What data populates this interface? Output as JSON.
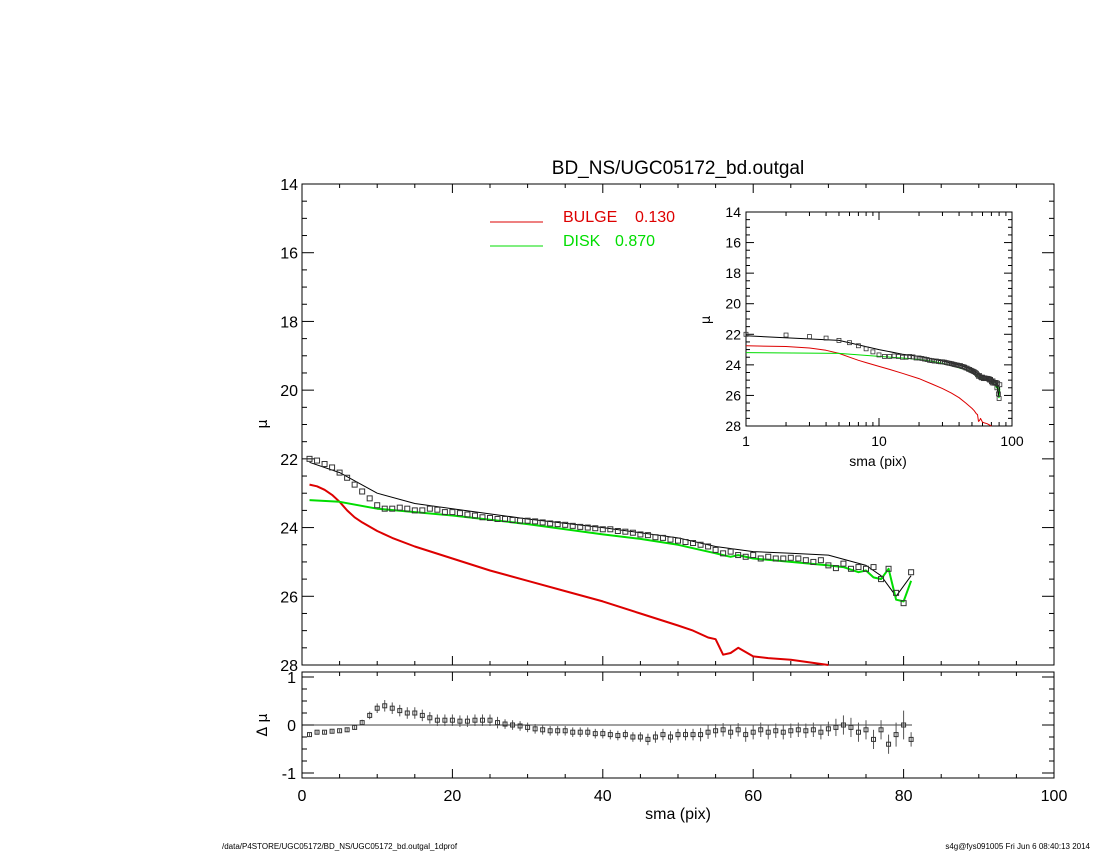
{
  "chart_data": {
    "type": "line",
    "title": "BD_NS/UGC05172_bd.outgal",
    "main_panel": {
      "ylabel": "μ",
      "xlim": [
        0,
        100
      ],
      "ylim": [
        28,
        14
      ],
      "yticks": [
        "14",
        "16",
        "18",
        "20",
        "22",
        "24",
        "26",
        "28"
      ],
      "legend": [
        {
          "label": "BULGE",
          "value": "0.130",
          "color": "#dd0000"
        },
        {
          "label": "DISK",
          "value": "0.870",
          "color": "#00dd00"
        }
      ],
      "data_points": {
        "name": "",
        "marker": "square",
        "x": [
          1,
          2,
          3,
          4,
          5,
          6,
          7,
          8,
          9,
          10,
          11,
          12,
          13,
          14,
          15,
          16,
          17,
          18,
          19,
          20,
          21,
          22,
          23,
          24,
          25,
          26,
          27,
          28,
          29,
          30,
          31,
          32,
          33,
          34,
          35,
          36,
          37,
          38,
          39,
          40,
          41,
          42,
          43,
          44,
          45,
          46,
          47,
          48,
          49,
          50,
          51,
          52,
          53,
          54,
          55,
          56,
          57,
          58,
          59,
          60,
          61,
          62,
          63,
          64,
          65,
          66,
          67,
          68,
          69,
          70,
          71,
          72,
          73,
          74,
          75,
          76,
          77,
          78,
          79,
          80,
          81
        ],
        "y": [
          22.0,
          22.05,
          22.15,
          22.25,
          22.4,
          22.55,
          22.75,
          22.95,
          23.15,
          23.35,
          23.45,
          23.45,
          23.42,
          23.45,
          23.5,
          23.5,
          23.45,
          23.48,
          23.55,
          23.55,
          23.58,
          23.62,
          23.65,
          23.7,
          23.72,
          23.75,
          23.75,
          23.78,
          23.8,
          23.8,
          23.82,
          23.85,
          23.88,
          23.9,
          23.92,
          23.95,
          23.98,
          24.0,
          24.02,
          24.05,
          24.05,
          24.1,
          24.12,
          24.15,
          24.2,
          24.22,
          24.28,
          24.3,
          24.35,
          24.38,
          24.42,
          24.45,
          24.5,
          24.55,
          24.65,
          24.75,
          24.7,
          24.8,
          24.85,
          24.8,
          24.9,
          24.85,
          24.9,
          24.9,
          24.88,
          24.9,
          24.95,
          25.0,
          24.95,
          25.1,
          25.18,
          25.05,
          25.2,
          25.15,
          25.2,
          25.15,
          25.5,
          25.2,
          25.9,
          26.2,
          25.3
        ]
      },
      "model": {
        "name": "",
        "color": "#000000",
        "x": [
          1,
          5,
          10,
          15,
          20,
          30,
          40,
          50,
          55,
          60,
          65,
          70,
          75,
          77,
          79,
          81
        ],
        "y": [
          22.1,
          22.4,
          23.0,
          23.3,
          23.45,
          23.75,
          24.0,
          24.3,
          24.55,
          24.7,
          24.75,
          24.8,
          25.1,
          25.4,
          26.0,
          25.4
        ]
      },
      "bulge": {
        "name": "BULGE",
        "color": "#dd0000",
        "x": [
          1,
          2,
          3,
          4,
          5,
          6,
          7,
          8,
          10,
          12,
          15,
          20,
          25,
          30,
          35,
          40,
          45,
          50,
          52,
          54,
          55,
          56,
          57,
          58,
          60,
          62,
          65,
          70
        ],
        "y": [
          22.75,
          22.8,
          22.9,
          23.05,
          23.25,
          23.5,
          23.7,
          23.85,
          24.1,
          24.3,
          24.55,
          24.9,
          25.25,
          25.55,
          25.85,
          26.15,
          26.5,
          26.85,
          27.0,
          27.2,
          27.25,
          27.7,
          27.65,
          27.5,
          27.75,
          27.8,
          27.85,
          28.0
        ]
      },
      "disk": {
        "name": "DISK",
        "color": "#00dd00",
        "x": [
          1,
          5,
          10,
          15,
          20,
          25,
          30,
          35,
          40,
          45,
          50,
          55,
          56,
          57,
          58,
          60,
          65,
          70,
          72,
          74,
          75,
          76,
          77,
          78,
          79,
          80,
          81
        ],
        "y": [
          23.2,
          23.25,
          23.45,
          23.55,
          23.65,
          23.77,
          23.9,
          24.05,
          24.2,
          24.33,
          24.5,
          24.75,
          24.8,
          24.85,
          24.8,
          24.9,
          25.0,
          25.1,
          25.15,
          25.3,
          25.25,
          25.45,
          25.5,
          25.2,
          26.1,
          26.15,
          25.55
        ]
      }
    },
    "inset_panel": {
      "xlabel": "sma (pix)",
      "ylabel": "μ",
      "xscale": "log",
      "xlim": [
        1,
        100
      ],
      "ylim": [
        28,
        14
      ],
      "xticks": [
        "1",
        "10",
        "100"
      ],
      "yticks": [
        "14",
        "16",
        "18",
        "20",
        "22",
        "24",
        "26",
        "28"
      ]
    },
    "residual_panel": {
      "ylabel": "Δ μ",
      "xlabel": "sma (pix)",
      "xlim": [
        0,
        100
      ],
      "ylim": [
        -1,
        1
      ],
      "xticks": [
        "0",
        "20",
        "40",
        "60",
        "80",
        "100"
      ],
      "yticks": [
        "-1",
        "0",
        "1"
      ],
      "x": [
        1,
        2,
        3,
        4,
        5,
        6,
        7,
        8,
        9,
        10,
        11,
        12,
        13,
        14,
        15,
        16,
        17,
        18,
        19,
        20,
        21,
        22,
        23,
        24,
        25,
        26,
        27,
        28,
        29,
        30,
        31,
        32,
        33,
        34,
        35,
        36,
        37,
        38,
        39,
        40,
        41,
        42,
        43,
        44,
        45,
        46,
        47,
        48,
        49,
        50,
        51,
        52,
        53,
        54,
        55,
        56,
        57,
        58,
        59,
        60,
        61,
        62,
        63,
        64,
        65,
        66,
        67,
        68,
        69,
        70,
        71,
        72,
        73,
        74,
        75,
        76,
        77,
        78,
        79,
        80,
        81
      ],
      "y": [
        -0.2,
        -0.15,
        -0.15,
        -0.13,
        -0.12,
        -0.1,
        -0.05,
        0.05,
        0.2,
        0.35,
        0.4,
        0.35,
        0.3,
        0.25,
        0.25,
        0.2,
        0.15,
        0.1,
        0.1,
        0.1,
        0.08,
        0.08,
        0.1,
        0.1,
        0.1,
        0.05,
        0.02,
        0.0,
        -0.02,
        -0.05,
        -0.08,
        -0.1,
        -0.12,
        -0.12,
        -0.12,
        -0.15,
        -0.15,
        -0.15,
        -0.18,
        -0.18,
        -0.2,
        -0.22,
        -0.2,
        -0.25,
        -0.25,
        -0.3,
        -0.25,
        -0.2,
        -0.25,
        -0.2,
        -0.2,
        -0.2,
        -0.2,
        -0.15,
        -0.12,
        -0.1,
        -0.15,
        -0.1,
        -0.2,
        -0.15,
        -0.1,
        -0.15,
        -0.12,
        -0.15,
        -0.12,
        -0.1,
        -0.12,
        -0.1,
        -0.15,
        -0.08,
        -0.05,
        0.0,
        -0.05,
        -0.15,
        -0.1,
        -0.3,
        -0.1,
        -0.4,
        -0.2,
        0.0,
        -0.3
      ],
      "err": [
        0.03,
        0.03,
        0.03,
        0.03,
        0.03,
        0.04,
        0.05,
        0.06,
        0.08,
        0.1,
        0.12,
        0.12,
        0.12,
        0.12,
        0.12,
        0.12,
        0.12,
        0.12,
        0.12,
        0.12,
        0.12,
        0.12,
        0.12,
        0.12,
        0.12,
        0.12,
        0.1,
        0.1,
        0.1,
        0.1,
        0.1,
        0.1,
        0.1,
        0.1,
        0.1,
        0.1,
        0.1,
        0.1,
        0.1,
        0.1,
        0.1,
        0.1,
        0.1,
        0.1,
        0.1,
        0.12,
        0.12,
        0.12,
        0.12,
        0.12,
        0.12,
        0.12,
        0.14,
        0.14,
        0.14,
        0.14,
        0.14,
        0.14,
        0.15,
        0.15,
        0.15,
        0.15,
        0.15,
        0.15,
        0.15,
        0.15,
        0.15,
        0.15,
        0.15,
        0.15,
        0.18,
        0.2,
        0.2,
        0.2,
        0.2,
        0.2,
        0.2,
        0.2,
        0.25,
        0.3,
        0.15
      ]
    }
  },
  "footer": {
    "left": "/data/P4STORE/UGC05172/BD_NS/UGC05172_bd.outgal_1dprof",
    "right": "s4g@fys091005  Fri Jun  6 08:40:13 2014"
  }
}
